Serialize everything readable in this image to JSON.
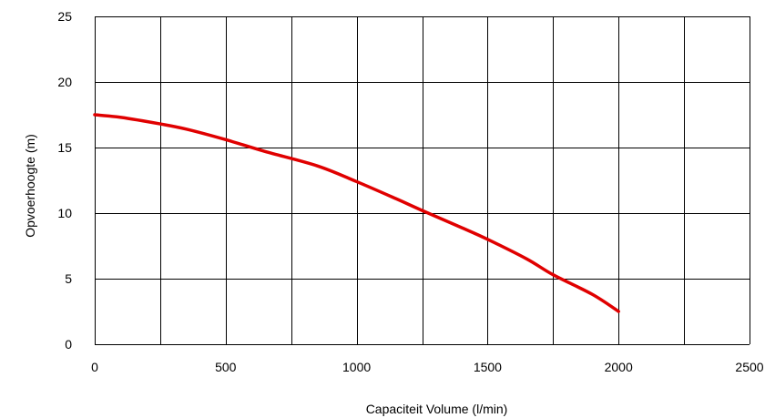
{
  "chart_data": {
    "type": "line",
    "title": "",
    "xlabel": "Capaciteit Volume (l/min)",
    "ylabel": "Opvoerhoogte (m)",
    "xlim": [
      0,
      2500
    ],
    "ylim": [
      0,
      25
    ],
    "x_ticks": [
      0,
      500,
      1000,
      1500,
      2000,
      2500
    ],
    "x_tick_labels": [
      "0",
      "500",
      "1000",
      "1500",
      "2000",
      "2500"
    ],
    "y_ticks": [
      0,
      5,
      10,
      15,
      20,
      25
    ],
    "y_tick_labels": [
      "0",
      "5",
      "10",
      "15",
      "20",
      "25"
    ],
    "x_grid_step": 250,
    "grid": true,
    "series": [
      {
        "color": "#e00000",
        "points": [
          [
            0,
            17.5
          ],
          [
            100,
            17.3
          ],
          [
            250,
            16.8
          ],
          [
            350,
            16.4
          ],
          [
            500,
            15.6
          ],
          [
            650,
            14.7
          ],
          [
            850,
            13.6
          ],
          [
            1000,
            12.4
          ],
          [
            1150,
            11.1
          ],
          [
            1250,
            10.2
          ],
          [
            1400,
            8.9
          ],
          [
            1500,
            8.0
          ],
          [
            1650,
            6.5
          ],
          [
            1750,
            5.3
          ],
          [
            1900,
            3.8
          ],
          [
            2000,
            2.5
          ]
        ]
      }
    ]
  }
}
